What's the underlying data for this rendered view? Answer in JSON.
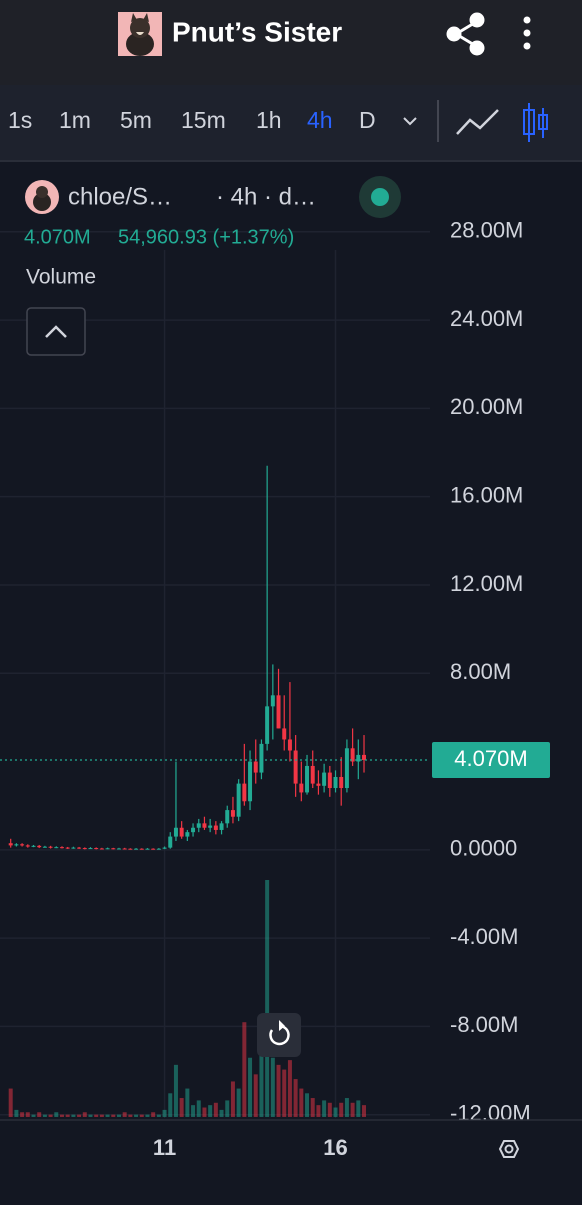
{
  "header": {
    "title": "Pnut’s Sister"
  },
  "toolbar": {
    "timeframes": [
      "1s",
      "1m",
      "5m",
      "15m",
      "1h",
      "4h",
      "D"
    ],
    "active_index": 5
  },
  "legend": {
    "symbol": "chloe/S…",
    "interval": "· 4h · d…",
    "last": "4.070M",
    "change": "54,960.93 (+1.37%)",
    "indicator": "Volume"
  },
  "chart_data": {
    "type": "candlestick",
    "up_color": "#22ab94",
    "down_color": "#f23645",
    "grid": true,
    "xlim": [
      -1,
      72
    ],
    "xticks": [
      {
        "value": 27,
        "label": "11"
      },
      {
        "value": 57,
        "label": "16"
      }
    ],
    "ylim": [
      -12.15,
      30.8
    ],
    "yticks": [
      {
        "value": 28,
        "label": "28.00M"
      },
      {
        "value": 24,
        "label": "24.00M"
      },
      {
        "value": 20,
        "label": "20.00M"
      },
      {
        "value": 16,
        "label": "16.00M"
      },
      {
        "value": 12,
        "label": "12.00M"
      },
      {
        "value": 8,
        "label": "8.00M"
      },
      {
        "value": 0,
        "label": "0.0000"
      },
      {
        "value": -4,
        "label": "-4.00M"
      },
      {
        "value": -8,
        "label": "-8.00M"
      },
      {
        "value": -12,
        "label": "-12.00M"
      }
    ],
    "last_price": {
      "value": 4.07,
      "label": "4.070M"
    },
    "open": [
      0.3,
      0.2,
      0.25,
      0.2,
      0.15,
      0.18,
      0.12,
      0.14,
      0.1,
      0.12,
      0.1,
      0.08,
      0.1,
      0.08,
      0.06,
      0.08,
      0.06,
      0.05,
      0.07,
      0.05,
      0.06,
      0.05,
      0.04,
      0.05,
      0.04,
      0.05,
      0.04,
      0.05,
      0.1,
      0.6,
      1.0,
      0.6,
      0.8,
      1.0,
      1.2,
      1.0,
      1.1,
      0.9,
      1.2,
      1.8,
      1.5,
      3.0,
      2.2,
      4.0,
      3.5,
      4.8,
      6.5,
      7.0,
      5.5,
      5.0,
      4.5,
      3.0,
      2.6,
      3.8,
      3.0,
      2.9,
      3.5,
      2.8,
      3.3,
      2.8,
      4.6,
      4.0,
      4.3
    ],
    "close": [
      0.2,
      0.25,
      0.2,
      0.15,
      0.18,
      0.12,
      0.14,
      0.1,
      0.12,
      0.1,
      0.08,
      0.1,
      0.08,
      0.06,
      0.08,
      0.06,
      0.05,
      0.07,
      0.05,
      0.06,
      0.05,
      0.04,
      0.05,
      0.04,
      0.05,
      0.04,
      0.05,
      0.1,
      0.6,
      1.0,
      0.6,
      0.8,
      1.0,
      1.2,
      1.0,
      1.1,
      0.9,
      1.2,
      1.8,
      1.5,
      3.0,
      2.2,
      4.0,
      3.5,
      4.8,
      6.5,
      7.0,
      5.5,
      5.0,
      4.5,
      3.0,
      2.6,
      3.8,
      3.0,
      2.9,
      3.5,
      2.8,
      3.3,
      2.8,
      4.6,
      4.0,
      4.3,
      4.07
    ],
    "high": [
      0.5,
      0.3,
      0.3,
      0.25,
      0.22,
      0.22,
      0.18,
      0.18,
      0.16,
      0.16,
      0.13,
      0.14,
      0.13,
      0.11,
      0.12,
      0.11,
      0.09,
      0.1,
      0.09,
      0.09,
      0.09,
      0.07,
      0.08,
      0.07,
      0.08,
      0.07,
      0.08,
      0.15,
      0.8,
      4.0,
      1.3,
      0.9,
      1.2,
      1.4,
      1.5,
      1.4,
      1.3,
      1.3,
      2.0,
      2.4,
      3.2,
      4.8,
      4.5,
      5.0,
      5.0,
      17.4,
      8.4,
      8.2,
      7.0,
      7.6,
      5.2,
      4.0,
      4.3,
      4.5,
      3.6,
      3.9,
      3.8,
      3.6,
      4.2,
      5.0,
      5.5,
      5.0,
      5.2
    ],
    "low": [
      0.1,
      0.15,
      0.15,
      0.1,
      0.12,
      0.08,
      0.1,
      0.06,
      0.08,
      0.06,
      0.04,
      0.05,
      0.04,
      0.02,
      0.04,
      0.02,
      0.02,
      0.03,
      0.02,
      0.02,
      0.02,
      0.01,
      0.02,
      0.01,
      0.02,
      0.01,
      0.02,
      0.03,
      0.05,
      0.4,
      0.5,
      0.4,
      0.6,
      0.8,
      0.9,
      0.8,
      0.7,
      0.7,
      1.0,
      1.2,
      1.3,
      2.0,
      1.8,
      3.0,
      3.2,
      4.5,
      5.0,
      5.5,
      4.5,
      4.0,
      2.4,
      2.2,
      2.5,
      2.8,
      2.5,
      2.6,
      2.4,
      2.6,
      2.0,
      2.6,
      3.8,
      3.2,
      3.5
    ],
    "volume": [
      12,
      3,
      2,
      2,
      1,
      2,
      1,
      1,
      2,
      1,
      1,
      1,
      1,
      2,
      1,
      1,
      1,
      1,
      1,
      1,
      2,
      1,
      1,
      1,
      1,
      2,
      1,
      3,
      10,
      22,
      8,
      12,
      5,
      7,
      4,
      5,
      6,
      3,
      7,
      15,
      12,
      40,
      25,
      18,
      40,
      100,
      25,
      22,
      20,
      24,
      16,
      12,
      10,
      8,
      5,
      7,
      6,
      4,
      6,
      8,
      6,
      7,
      5
    ]
  }
}
